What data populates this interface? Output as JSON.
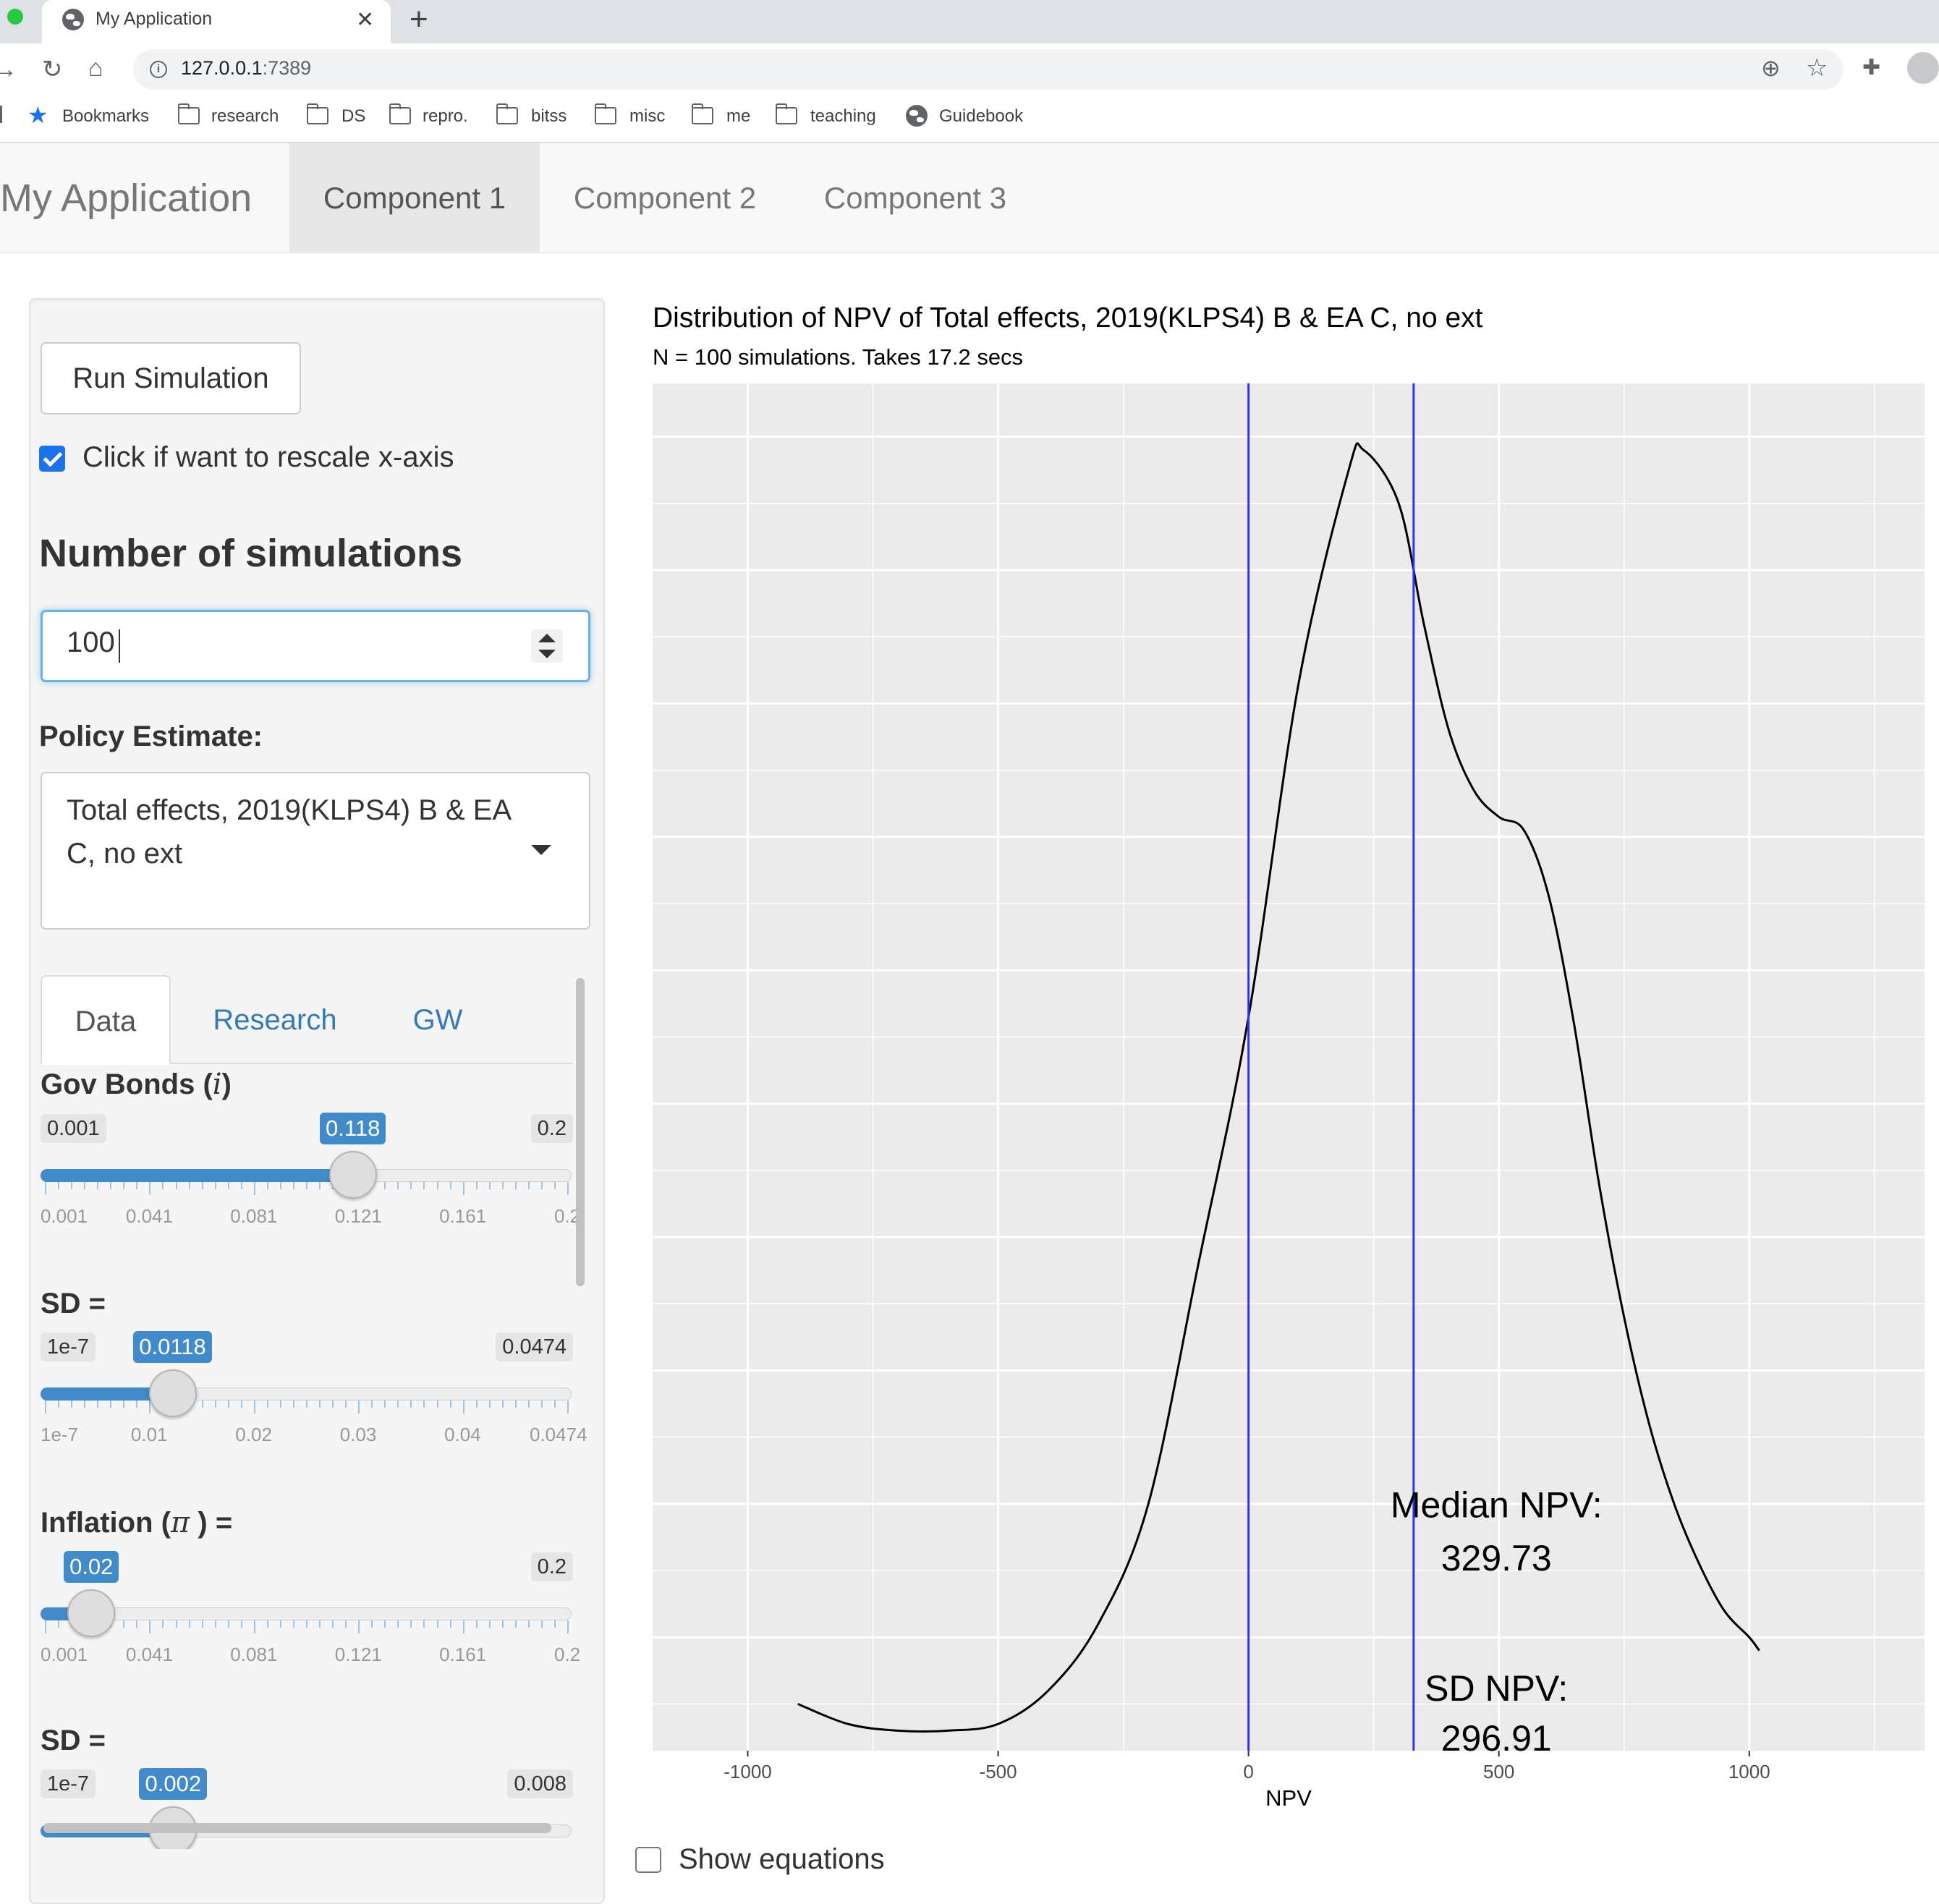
{
  "browser": {
    "tab_title": "My Application",
    "url_host": "127.0.0.1",
    "url_port": ":7389",
    "bookmarks": [
      "Bookmarks",
      "research",
      "DS",
      "repro.",
      "bitss",
      "misc",
      "me",
      "teaching",
      "Guidebook"
    ]
  },
  "navbar": {
    "brand": "My Application",
    "tabs": [
      "Component 1",
      "Component 2",
      "Component 3"
    ],
    "active_tab": "Component 1"
  },
  "sidebar": {
    "run_button": "Run Simulation",
    "rescale_label": "Click if want to rescale x-axis",
    "rescale_checked": true,
    "num_sims_heading": "Number of simulations",
    "num_sims_value": "100",
    "policy_label": "Policy Estimate:",
    "policy_value": "Total effects, 2019(KLPS4) B & EA C, no ext",
    "tabs": [
      "Data",
      "Research",
      "GW"
    ],
    "active_tab": "Data",
    "sliders": [
      {
        "label": "Gov Bonds (",
        "symbol": "i",
        "label_end": ")",
        "min": 0.001,
        "max": 0.2,
        "value": 0.118,
        "min_text": "0.001",
        "max_text": "0.2",
        "value_text": "0.118",
        "ticks": [
          "0.001",
          "0.041",
          "0.081",
          "0.121",
          "0.161",
          "0.2"
        ]
      },
      {
        "label": "SD =",
        "min": 1e-07,
        "max": 0.0474,
        "value": 0.0118,
        "min_text": "1e-7",
        "max_text": "0.0474",
        "value_text": "0.0118",
        "ticks": [
          "1e-7",
          "0.01",
          "0.02",
          "0.03",
          "0.04",
          "0.0474"
        ]
      },
      {
        "label": "Inflation (",
        "symbol": "π",
        "label_end": " ) =",
        "min": 0.001,
        "max": 0.2,
        "value": 0.02,
        "min_text": "",
        "max_text": "0.2",
        "value_text": "0.02",
        "ticks": [
          "0.001",
          "0.041",
          "0.081",
          "0.121",
          "0.161",
          "0.2"
        ]
      },
      {
        "label": "SD =",
        "min": 1e-07,
        "max": 0.008,
        "value": 0.002,
        "min_text": "1e-7",
        "max_text": "0.008",
        "value_text": "0.002"
      }
    ]
  },
  "chart": {
    "title": "Distribution of NPV of Total effects, 2019(KLPS4) B & EA C, no ext",
    "subtitle": "N = 100 simulations. Takes 17.2 secs",
    "show_equations_label": "Show equations"
  },
  "chart_data": {
    "type": "line",
    "title": "Distribution of NPV of Total effects, 2019(KLPS4) B & EA C, no ext",
    "subtitle": "N = 100 simulations. Takes 17.2 secs",
    "xlabel": "NPV",
    "ylabel": "",
    "xlim": [
      -1190,
      1350
    ],
    "ylim": [
      0.00043,
      0.00248
    ],
    "x_ticks": [
      -1000,
      -500,
      0,
      500,
      1000
    ],
    "x_tick_labels": [
      "-1000",
      "-500",
      "0",
      "500",
      "1000"
    ],
    "grid": true,
    "series": [
      {
        "x": [
          -900,
          -800,
          -700,
          -600,
          -500,
          -400,
          -300,
          -200,
          -100,
          0,
          100,
          200,
          230,
          300,
          350,
          400,
          450,
          500,
          550,
          600,
          650,
          700,
          750,
          800,
          850,
          900,
          950,
          1000,
          1020
        ],
        "y": [
          0.0005,
          0.00047,
          0.00046,
          0.00046,
          0.00047,
          0.00052,
          0.00062,
          0.0008,
          0.00116,
          0.00153,
          0.00203,
          0.00235,
          0.00238,
          0.0023,
          0.00212,
          0.00196,
          0.00187,
          0.00183,
          0.00181,
          0.00171,
          0.00152,
          0.00128,
          0.00108,
          0.00092,
          0.0008,
          0.00071,
          0.00064,
          0.0006,
          0.00058
        ]
      }
    ],
    "vlines": [
      0,
      329.73
    ],
    "annotations": [
      {
        "text": "Median NPV:",
        "x": 495,
        "y": 0.00078
      },
      {
        "text": "329.73",
        "x": 495,
        "y": 0.0007
      },
      {
        "text": "SD NPV:",
        "x": 495,
        "y": 0.000505
      },
      {
        "text": "296.91",
        "x": 495,
        "y": 0.00043
      }
    ],
    "line_color": "#000000",
    "vline_color": "#3333ee",
    "panel_color": "#ebebeb"
  }
}
